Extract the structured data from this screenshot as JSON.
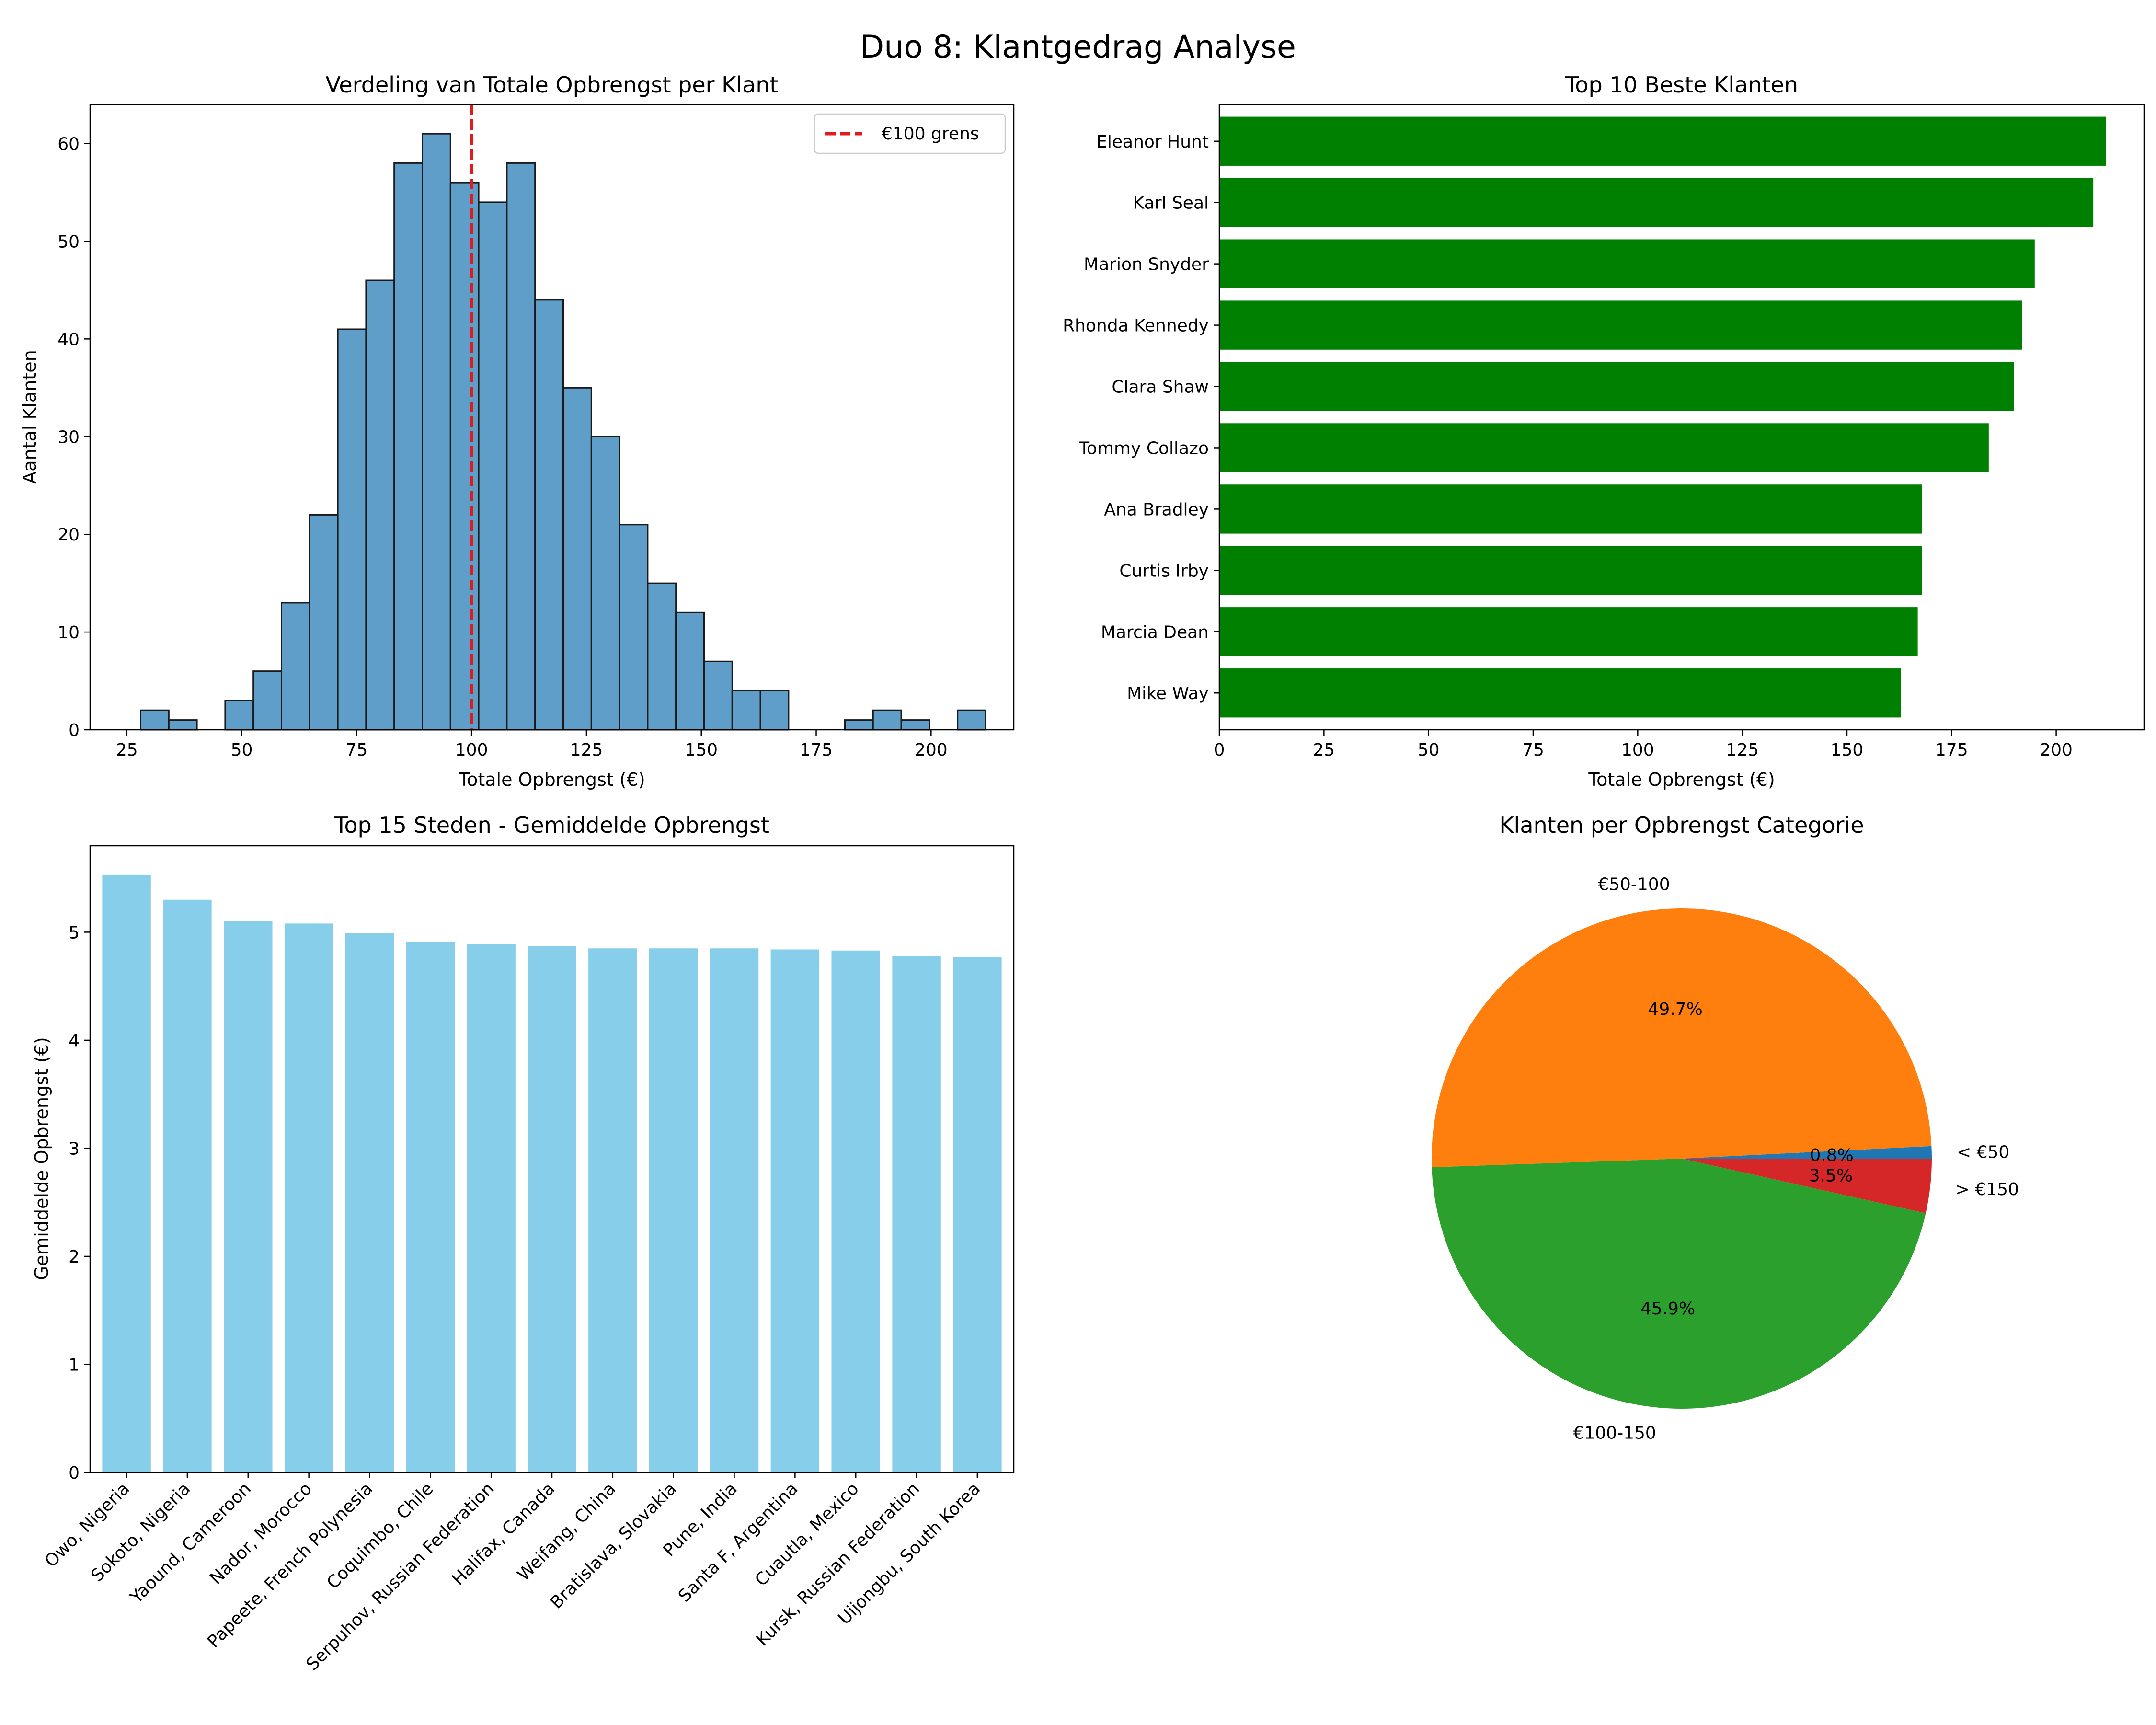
{
  "figure": {
    "title": "Duo 8: Klantgedrag Analyse"
  },
  "chart_data": [
    {
      "type": "bar",
      "subtype": "histogram",
      "title": "Verdeling van Totale Opbrengst per Klant",
      "xlabel": "Totale Opbrengst (€)",
      "ylabel": "Aantal Klanten",
      "x_ticks": [
        25,
        50,
        75,
        100,
        125,
        150,
        175,
        200
      ],
      "y_ticks": [
        0,
        10,
        20,
        30,
        40,
        50,
        60
      ],
      "xlim": [
        17,
        218
      ],
      "ylim": [
        0,
        64
      ],
      "bin_start": 28.0,
      "bin_width": 6.13,
      "values": [
        2,
        1,
        0,
        3,
        6,
        13,
        22,
        41,
        46,
        58,
        61,
        56,
        54,
        58,
        44,
        35,
        30,
        21,
        15,
        12,
        7,
        4,
        4,
        0,
        0,
        1,
        2,
        1,
        0,
        2
      ],
      "bar_color": "#5f9ec9",
      "reference_line": {
        "x": 100,
        "label": "€100 grens",
        "color": "#e31a1c",
        "style": "dashed"
      },
      "legend": {
        "entries": [
          "€100 grens"
        ],
        "position": "top-right"
      }
    },
    {
      "type": "bar",
      "orientation": "horizontal",
      "title": "Top 10 Beste Klanten",
      "xlabel": "Totale Opbrengst (€)",
      "x_ticks": [
        0,
        25,
        50,
        75,
        100,
        125,
        150,
        175,
        200
      ],
      "xlim": [
        0,
        221
      ],
      "categories": [
        "Eleanor Hunt",
        "Karl Seal",
        "Marion Snyder",
        "Rhonda Kennedy",
        "Clara Shaw",
        "Tommy Collazo",
        "Ana Bradley",
        "Curtis Irby",
        "Marcia Dean",
        "Mike Way"
      ],
      "values": [
        211.87,
        208.88,
        194.87,
        191.9,
        189.89,
        183.88,
        167.9,
        167.88,
        166.91,
        162.91
      ],
      "bar_color": "#008000"
    },
    {
      "type": "bar",
      "title": "Top 15 Steden - Gemiddelde Opbrengst",
      "ylabel": "Gemiddelde Opbrengst (€)",
      "y_ticks": [
        0,
        1,
        2,
        3,
        4,
        5
      ],
      "ylim": [
        0,
        5.8
      ],
      "categories": [
        "Owo, Nigeria",
        "Sokoto, Nigeria",
        "Yaound, Cameroon",
        "Nador, Morocco",
        "Papeete, French Polynesia",
        "Coquimbo, Chile",
        "Serpuhov, Russian Federation",
        "Halifax, Canada",
        "Weifang, China",
        "Bratislava, Slovakia",
        "Pune, India",
        "Santa F, Argentina",
        "Cuautla, Mexico",
        "Kursk, Russian Federation",
        "Uijongbu, South Korea"
      ],
      "values": [
        5.53,
        5.3,
        5.1,
        5.08,
        4.99,
        4.91,
        4.89,
        4.87,
        4.85,
        4.85,
        4.85,
        4.84,
        4.83,
        4.78,
        4.77
      ],
      "bar_color": "#87ceeb"
    },
    {
      "type": "pie",
      "title": "Klanten per Opbrengst Categorie",
      "slices": [
        {
          "label": "< €50",
          "value": 0.8,
          "pct_label": "0.8%",
          "color": "#1f77b4"
        },
        {
          "label": "€50-100",
          "value": 49.7,
          "pct_label": "49.7%",
          "color": "#ff7f0e"
        },
        {
          "label": "€100-150",
          "value": 45.9,
          "pct_label": "45.9%",
          "color": "#2ca02c"
        },
        {
          "label": "> €150",
          "value": 3.5,
          "pct_label": "3.5%",
          "color": "#d62728"
        }
      ]
    }
  ]
}
